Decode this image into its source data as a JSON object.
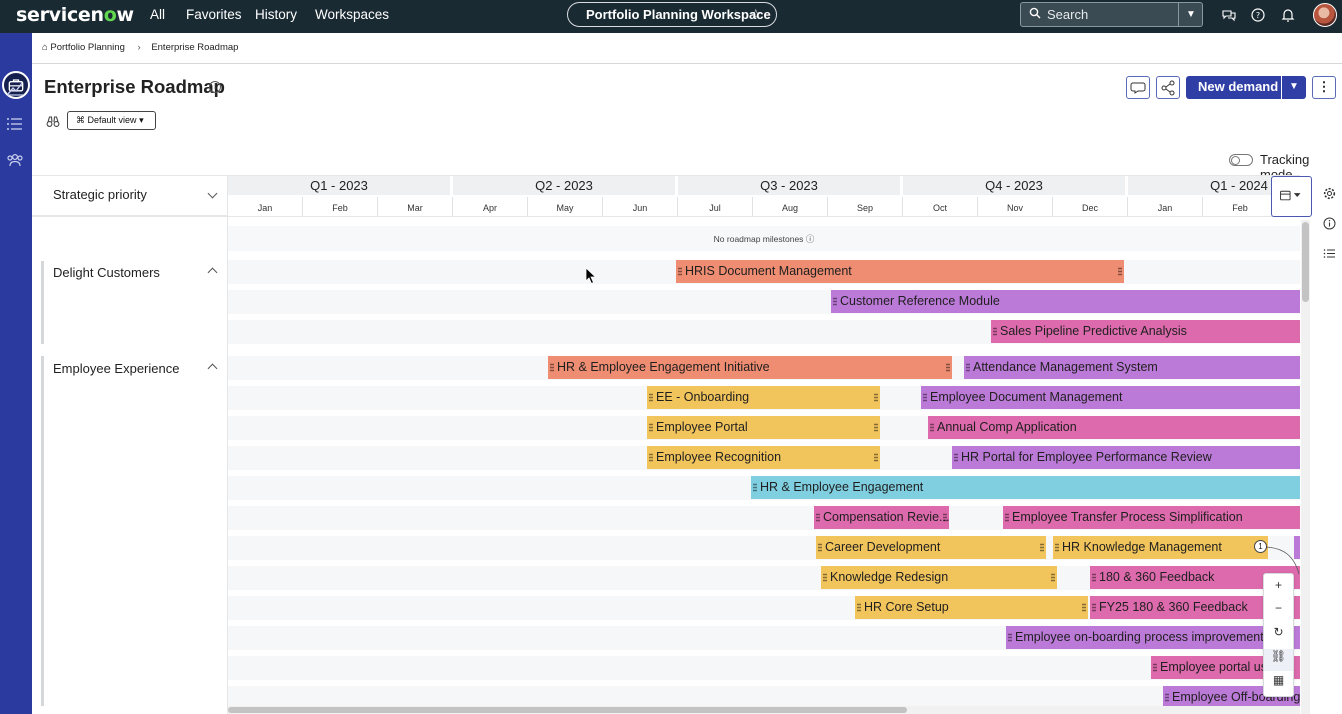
{
  "app": {
    "logo_text": "servicenow",
    "brand_color": "#2f3fa6",
    "nav_bg": "#1a2a33"
  },
  "topnav": {
    "links": [
      "All",
      "Favorites",
      "History",
      "Workspaces"
    ],
    "workspace": "Portfolio Planning Workspace",
    "search_placeholder": "Search",
    "icons": [
      "chat-icon",
      "help-icon",
      "bell-icon",
      "avatar"
    ]
  },
  "breadcrumb": {
    "root": "Portfolio Planning",
    "current": "Enterprise Roadmap"
  },
  "page": {
    "title": "Enterprise Roadmap",
    "view_select": "Default view",
    "new_demand_label": "New demand",
    "tracking_label": "Tracking mode",
    "groupby_label": "Strategic priority",
    "milestones_text": "No roadmap milestones",
    "counter": "1"
  },
  "timeline": {
    "quarters": [
      "Q1 - 2023",
      "Q2 - 2023",
      "Q3 - 2023",
      "Q4 - 2023",
      "Q1 - 2024"
    ],
    "months": [
      "Jan",
      "Feb",
      "Mar",
      "Apr",
      "May",
      "Jun",
      "Jul",
      "Aug",
      "Sep",
      "Oct",
      "Nov",
      "Dec",
      "Jan",
      "Feb"
    ]
  },
  "groups": [
    {
      "label": "Delight Customers"
    },
    {
      "label": "Employee Experience"
    }
  ],
  "bars": [
    {
      "label": "HRIS Document Management",
      "color": "orange"
    },
    {
      "label": "Customer Reference Module",
      "color": "purple"
    },
    {
      "label": "Sales Pipeline Predictive Analysis",
      "color": "pink"
    },
    {
      "label": "HR & Employee Engagement Initiative",
      "color": "orange"
    },
    {
      "label": "Attendance Management System",
      "color": "purple"
    },
    {
      "label": "EE - Onboarding",
      "color": "yellow"
    },
    {
      "label": "Employee Document Management",
      "color": "purple"
    },
    {
      "label": "Employee Portal",
      "color": "yellow"
    },
    {
      "label": "Annual Comp Application",
      "color": "pink"
    },
    {
      "label": "Employee Recognition",
      "color": "yellow"
    },
    {
      "label": "HR Portal for Employee Performance Review",
      "color": "purple"
    },
    {
      "label": "HR & Employee Engagement",
      "color": "cyan"
    },
    {
      "label": "Compensation Revie...",
      "color": "pink"
    },
    {
      "label": "Employee Transfer Process Simplification",
      "color": "pink"
    },
    {
      "label": "Career Development",
      "color": "yellow"
    },
    {
      "label": "HR Knowledge Management",
      "color": "yellow"
    },
    {
      "label": "Knowledge Redesign",
      "color": "yellow"
    },
    {
      "label": "180 & 360 Feedback",
      "color": "pink"
    },
    {
      "label": "HR Core Setup",
      "color": "yellow"
    },
    {
      "label": "FY25 180 & 360 Feedback",
      "color": "pink"
    },
    {
      "label": "Employee on-boarding process improvement",
      "color": "purple"
    },
    {
      "label": "Employee portal use",
      "color": "pink"
    },
    {
      "label": "Employee Off-boarding",
      "color": "purple"
    }
  ],
  "zoom_controls": [
    "plus-icon",
    "minus-icon",
    "reset-icon",
    "link-icon",
    "keyboard-icon"
  ]
}
